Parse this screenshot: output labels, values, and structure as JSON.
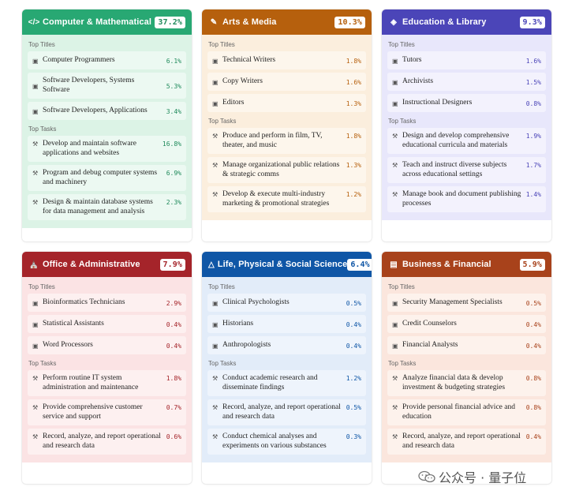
{
  "labels": {
    "top_titles": "Top Titles",
    "top_tasks": "Top Tasks"
  },
  "colors": {
    "computer": "#28a873",
    "arts": "#b6600d",
    "education": "#4b45b8",
    "office": "#a5242a",
    "science": "#0f56a6",
    "business": "#a8421b"
  },
  "cards": [
    {
      "title": "Computer & Mathematical",
      "percent": "37.2%",
      "icon": "code-icon",
      "titles": [
        {
          "label": "Computer Programmers",
          "pct": "6.1%"
        },
        {
          "label": "Software Developers, Systems Software",
          "pct": "5.3%"
        },
        {
          "label": "Software Developers, Applications",
          "pct": "3.4%"
        }
      ],
      "tasks": [
        {
          "label": "Develop and maintain software applications and websites",
          "pct": "16.8%"
        },
        {
          "label": "Program and debug computer systems and machinery",
          "pct": "6.9%"
        },
        {
          "label": "Design & maintain database systems for data management and analysis",
          "pct": "2.3%"
        }
      ]
    },
    {
      "title": "Arts & Media",
      "percent": "10.3%",
      "icon": "pen-icon",
      "titles": [
        {
          "label": "Technical Writers",
          "pct": "1.8%"
        },
        {
          "label": "Copy Writers",
          "pct": "1.6%"
        },
        {
          "label": "Editors",
          "pct": "1.3%"
        }
      ],
      "tasks": [
        {
          "label": "Produce and perform in film, TV, theater, and music",
          "pct": "1.8%"
        },
        {
          "label": "Manage organizational public relations & strategic comms",
          "pct": "1.3%"
        },
        {
          "label": "Develop & execute multi-industry marketing & promotional strategies",
          "pct": "1.2%"
        }
      ]
    },
    {
      "title": "Education & Library",
      "percent": "9.3%",
      "icon": "graduation-cap-icon",
      "titles": [
        {
          "label": "Tutors",
          "pct": "1.6%"
        },
        {
          "label": "Archivists",
          "pct": "1.5%"
        },
        {
          "label": "Instructional Designers",
          "pct": "0.8%"
        }
      ],
      "tasks": [
        {
          "label": "Design and develop comprehensive educational curricula and materials",
          "pct": "1.9%"
        },
        {
          "label": "Teach and instruct diverse subjects across educational settings",
          "pct": "1.7%"
        },
        {
          "label": "Manage book and document publishing processes",
          "pct": "1.4%"
        }
      ]
    },
    {
      "title": "Office & Administrative",
      "percent": "7.9%",
      "icon": "building-icon",
      "titles": [
        {
          "label": "Bioinformatics Technicians",
          "pct": "2.9%"
        },
        {
          "label": "Statistical Assistants",
          "pct": "0.4%"
        },
        {
          "label": "Word Processors",
          "pct": "0.4%"
        }
      ],
      "tasks": [
        {
          "label": "Perform routine IT system administration and maintenance",
          "pct": "1.8%"
        },
        {
          "label": "Provide comprehensive customer service and support",
          "pct": "0.7%"
        },
        {
          "label": "Record, analyze, and report operational and research data",
          "pct": "0.6%"
        }
      ]
    },
    {
      "title": "Life, Physical & Social Science",
      "percent": "6.4%",
      "icon": "flask-icon",
      "titles": [
        {
          "label": "Clinical Psychologists",
          "pct": "0.5%"
        },
        {
          "label": "Historians",
          "pct": "0.4%"
        },
        {
          "label": "Anthropologists",
          "pct": "0.4%"
        }
      ],
      "tasks": [
        {
          "label": "Conduct academic research and disseminate findings",
          "pct": "1.2%"
        },
        {
          "label": "Record, analyze, and report operational and research data",
          "pct": "0.5%"
        },
        {
          "label": "Conduct chemical analyses and experiments on various substances",
          "pct": "0.3%"
        }
      ]
    },
    {
      "title": "Business & Financial",
      "percent": "5.9%",
      "icon": "ledger-icon",
      "titles": [
        {
          "label": "Security Management Specialists",
          "pct": "0.5%"
        },
        {
          "label": "Credit Counselors",
          "pct": "0.4%"
        },
        {
          "label": "Financial Analysts",
          "pct": "0.4%"
        }
      ],
      "tasks": [
        {
          "label": "Analyze financial data & develop investment & budgeting strategies",
          "pct": "0.8%"
        },
        {
          "label": "Provide personal financial advice and education",
          "pct": "0.8%"
        },
        {
          "label": "Record, analyze, and report operational and research data",
          "pct": "0.4%"
        }
      ]
    }
  ],
  "watermark": {
    "text": "公众号 · 量子位"
  }
}
